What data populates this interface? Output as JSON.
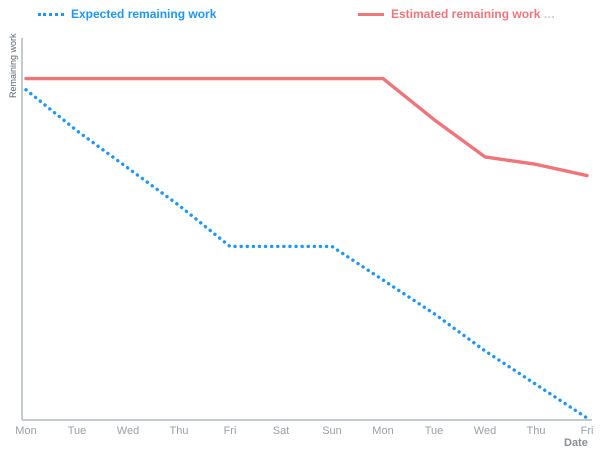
{
  "legend": {
    "items": [
      {
        "label": "Expected remaining work",
        "color": "#2196f3",
        "style": "dotted"
      },
      {
        "label": "Estimated remaining work",
        "suffix": "…",
        "color": "#ee767b",
        "style": "solid"
      }
    ]
  },
  "axes": {
    "y_label": "Remaining work",
    "x_label": "Date",
    "axis_color": "#c6cacf",
    "tick_color": "#9aa0a6"
  },
  "chart_data": {
    "type": "line",
    "title": "",
    "xlabel": "Date",
    "ylabel": "Remaining work",
    "categories": [
      "Mon",
      "Tue",
      "Wed",
      "Thu",
      "Fri",
      "Sat",
      "Sun",
      "Mon",
      "Tue",
      "Wed",
      "Thu",
      "Fri"
    ],
    "series": [
      {
        "name": "Expected remaining work",
        "color": "#2196f3",
        "dash": "dotted",
        "values": [
          88,
          77,
          67,
          57,
          46,
          46,
          46,
          37,
          28,
          18,
          9,
          0
        ]
      },
      {
        "name": "Estimated remaining work",
        "color": "#ee767b",
        "dash": "solid",
        "values": [
          91,
          91,
          91,
          91,
          91,
          91,
          91,
          91,
          80,
          70,
          68,
          65
        ]
      }
    ],
    "ylim": [
      0,
      100
    ],
    "grid": false,
    "legend_position": "top"
  }
}
